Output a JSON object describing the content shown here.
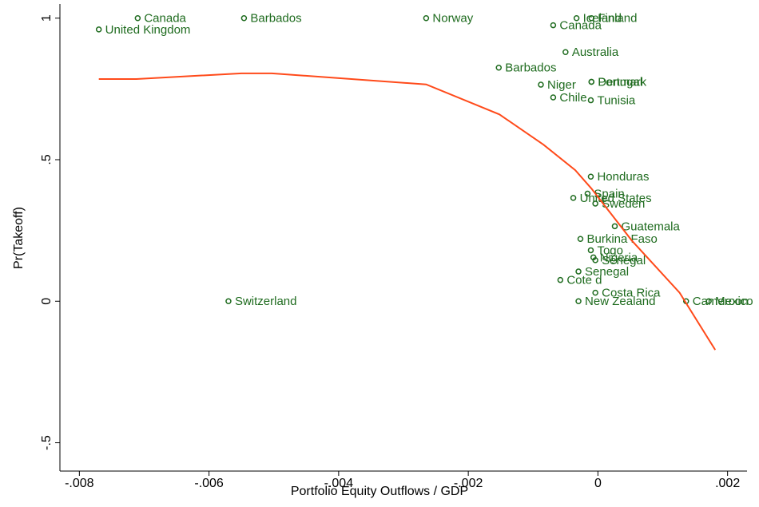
{
  "chart_data": {
    "type": "scatter",
    "x_label": "Portfolio Equity Outflows / GDP",
    "y_label": "Pr(Takeoff)",
    "xlim": [
      -0.0083,
      0.0023
    ],
    "ylim": [
      -0.6,
      1.05
    ],
    "xticks": [
      {
        "value": -0.008,
        "label": "-.008"
      },
      {
        "value": -0.006,
        "label": "-.006"
      },
      {
        "value": -0.004,
        "label": "-.004"
      },
      {
        "value": -0.002,
        "label": "-.002"
      },
      0,
      {
        "value": 0.002,
        "label": ".002"
      }
    ],
    "yticks": [
      {
        "value": -0.5,
        "label": "-.5"
      },
      0,
      {
        "value": 0.5,
        "label": ".5"
      },
      1
    ],
    "series": [
      {
        "type": "scatter",
        "color": "#1e6b1e",
        "labels": [
          "Canada",
          "United Kingdom",
          "Barbados",
          "Norway",
          "Iceland",
          "Finland",
          "Canada",
          "Australia",
          "Barbados",
          "Niger",
          "Denmark",
          "Portugal",
          "Chile",
          "Tunisia",
          "Honduras",
          "Spain",
          "United States",
          "Sweden",
          "Guatemala",
          "Burkina Faso",
          "Togo",
          "Nigeria",
          "Senegal",
          "Senegal",
          "Cote d",
          "Costa Rica",
          "New Zealand",
          "Cameroon",
          "Mexico",
          "Switzerland"
        ],
        "x": [
          -0.0071,
          -0.0077,
          -0.00546,
          -0.00265,
          -0.00033,
          -0.0001,
          -0.00069,
          -0.0005,
          -0.00153,
          -0.00088,
          -0.0001,
          -0.0001,
          -0.00069,
          -0.00011,
          -0.00011,
          -0.00016,
          -0.00038,
          -4e-05,
          0.00026,
          -0.00027,
          -0.00011,
          -7e-05,
          -4e-05,
          -0.0003,
          -0.00058,
          -4e-05,
          -0.0003,
          0.00136,
          0.00171,
          -0.0057
        ],
        "values": [
          1,
          0.96,
          1,
          1,
          1,
          1,
          0.975,
          0.88,
          0.825,
          0.765,
          0.775,
          0.775,
          0.72,
          0.71,
          0.44,
          0.38,
          0.365,
          0.345,
          0.265,
          0.22,
          0.18,
          0.155,
          0.145,
          0.105,
          0.075,
          0.03,
          0,
          0,
          0,
          0
        ]
      },
      {
        "type": "line",
        "color": "#ff4a1a",
        "x": [
          -0.0077,
          -0.00712,
          -0.0055,
          -0.00503,
          -0.00265,
          -0.00152,
          -0.00084,
          -0.00035,
          -0.0001,
          0.00052,
          0.00126,
          0.00181
        ],
        "values": [
          0.785,
          0.785,
          0.805,
          0.805,
          0.766,
          0.66,
          0.553,
          0.463,
          0.398,
          0.215,
          0.03,
          -0.172
        ]
      }
    ]
  }
}
